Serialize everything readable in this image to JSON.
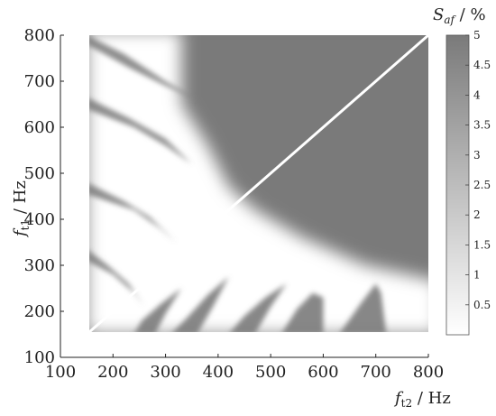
{
  "chart_data": {
    "type": "heatmap",
    "title": "",
    "xlabel": {
      "symbol": "f",
      "subscript": "t2",
      "unit": " / Hz"
    },
    "ylabel": {
      "symbol": "f",
      "subscript": "t1",
      "unit": " / Hz"
    },
    "xlim": [
      100,
      800
    ],
    "ylim": [
      100,
      800
    ],
    "x_ticks": [
      "100",
      "200",
      "300",
      "400",
      "500",
      "600",
      "700",
      "800"
    ],
    "y_ticks": [
      "100",
      "200",
      "300",
      "400",
      "500",
      "600",
      "700",
      "800"
    ],
    "data_x_range": [
      155,
      800
    ],
    "data_y_range": [
      155,
      800
    ],
    "colorbar": {
      "label": {
        "symbol": "S",
        "subscript": "af",
        "unit": " / %"
      },
      "range": [
        0,
        5
      ],
      "ticks": [
        "0.5",
        "1",
        "1.5",
        "2",
        "2.5",
        "3",
        "3.5",
        "4",
        "4.5",
        "5"
      ],
      "low_color": "#ffffff",
      "high_color": "#7a7a7a"
    },
    "ridge_line": {
      "x": [
        155,
        800
      ],
      "y": [
        155,
        800
      ],
      "value": 0
    },
    "grid": false
  }
}
